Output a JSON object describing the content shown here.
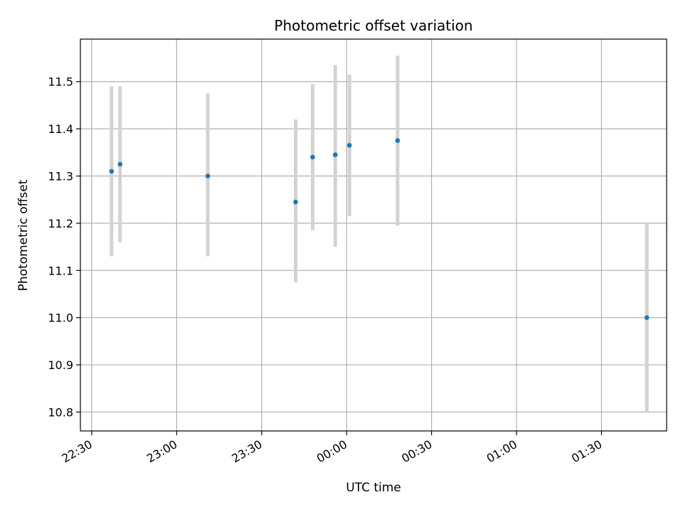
{
  "chart_data": {
    "type": "scatter",
    "title": "Photometric offset variation",
    "xlabel": "UTC time",
    "ylabel": "Photometric offset",
    "x_axis": {
      "kind": "time",
      "range": [
        "22:26",
        "01:53"
      ],
      "ticks": [
        "22:30",
        "23:00",
        "23:30",
        "00:00",
        "00:30",
        "01:00",
        "01:30"
      ]
    },
    "y_axis": {
      "range": [
        10.76,
        11.59
      ],
      "ticks": [
        "10.8",
        "10.9",
        "11.0",
        "11.1",
        "11.2",
        "11.3",
        "11.4",
        "11.5"
      ]
    },
    "grid": true,
    "marker_color": "#1f77b4",
    "errorbar_color": "#d3d3d3",
    "points": [
      {
        "t": "22:37",
        "y": 11.31,
        "ymin": 11.13,
        "ymax": 11.49
      },
      {
        "t": "22:40",
        "y": 11.325,
        "ymin": 11.16,
        "ymax": 11.49
      },
      {
        "t": "23:11",
        "y": 11.3,
        "ymin": 11.13,
        "ymax": 11.475
      },
      {
        "t": "23:42",
        "y": 11.245,
        "ymin": 11.075,
        "ymax": 11.42
      },
      {
        "t": "23:48",
        "y": 11.34,
        "ymin": 11.185,
        "ymax": 11.495
      },
      {
        "t": "23:56",
        "y": 11.345,
        "ymin": 11.15,
        "ymax": 11.535
      },
      {
        "t": "00:01",
        "y": 11.365,
        "ymin": 11.215,
        "ymax": 11.515
      },
      {
        "t": "00:18",
        "y": 11.375,
        "ymin": 11.195,
        "ymax": 11.555
      },
      {
        "t": "01:46",
        "y": 11.0,
        "ymin": 10.8,
        "ymax": 11.2
      }
    ]
  }
}
